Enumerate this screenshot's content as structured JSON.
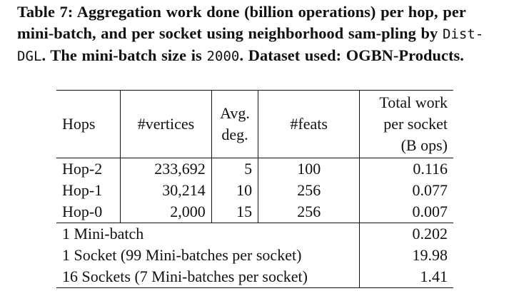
{
  "caption": {
    "part1": "Table 7: Aggregation work done (billion operations) per hop, per mini-batch, and per socket using neighborhood sam-pling by ",
    "system": "Dist-DGL",
    "part2": ". The mini-batch size is ",
    "batch_size": "2000",
    "part3": ". Dataset used: OGBN-Products."
  },
  "table": {
    "headers": {
      "hops": "Hops",
      "vertices": "#vertices",
      "deg_line1": "Avg.",
      "deg_line2": "deg.",
      "feats": "#feats",
      "total_line1": "Total work",
      "total_line2": "per socket",
      "total_line3": "(B ops)"
    },
    "rows": [
      {
        "hop": "Hop-2",
        "vertices": "233,692",
        "deg": "5",
        "feats": "100",
        "total": "0.116"
      },
      {
        "hop": "Hop-1",
        "vertices": "30,214",
        "deg": "10",
        "feats": "256",
        "total": "0.077"
      },
      {
        "hop": "Hop-0",
        "vertices": "2,000",
        "deg": "15",
        "feats": "256",
        "total": "0.007"
      }
    ],
    "summary": [
      {
        "label": "1 Mini-batch",
        "total": "0.202"
      },
      {
        "label": "1 Socket (99 Mini-batches per socket)",
        "total": "19.98"
      },
      {
        "label": "16 Sockets (7 Mini-batches per socket)",
        "total": "1.41"
      }
    ]
  }
}
